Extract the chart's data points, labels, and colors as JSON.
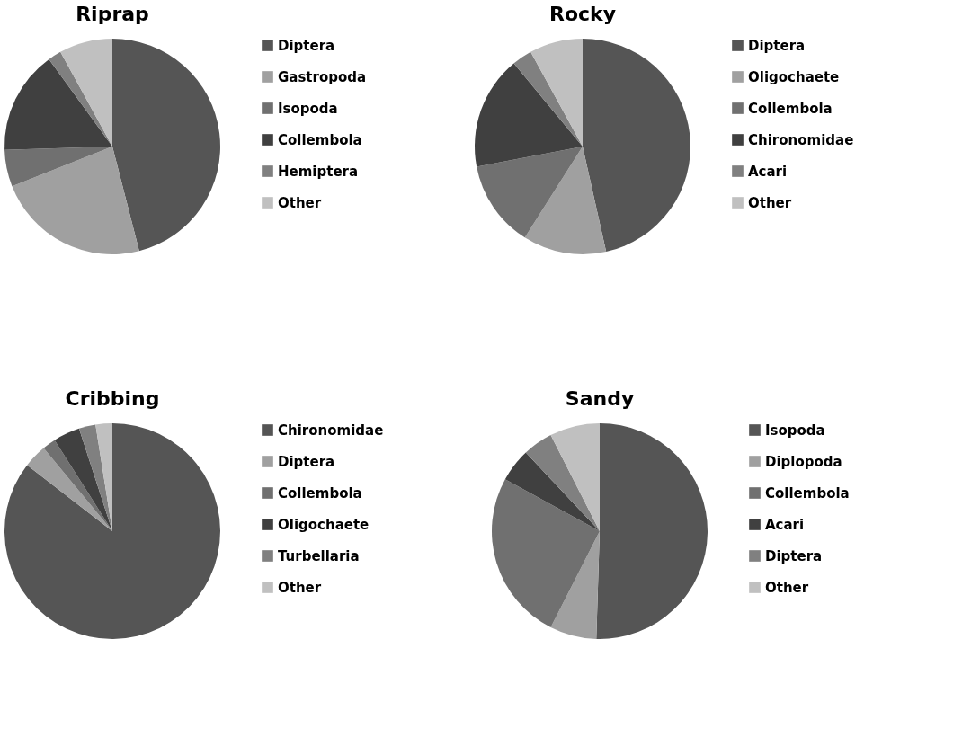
{
  "chart_data": [
    {
      "type": "pie",
      "title": "Riprap",
      "categories": [
        "Diptera",
        "Gastropoda",
        "Isopoda",
        "Collembola",
        "Hemiptera",
        "Other"
      ],
      "values": [
        46,
        23,
        5.5,
        15.5,
        2,
        8
      ],
      "colors": [
        "#555555",
        "#a0a0a0",
        "#707070",
        "#404040",
        "#808080",
        "#c0c0c0"
      ],
      "legend": "right"
    },
    {
      "type": "pie",
      "title": "Rocky",
      "categories": [
        "Diptera",
        "Oligochaete",
        "Collembola",
        "Chironomidae",
        "Acari",
        "Other"
      ],
      "values": [
        46.5,
        12.5,
        13,
        17,
        3,
        8
      ],
      "colors": [
        "#555555",
        "#a0a0a0",
        "#707070",
        "#404040",
        "#808080",
        "#c0c0c0"
      ],
      "legend": "right"
    },
    {
      "type": "pie",
      "title": "Cribbing",
      "categories": [
        "Chironomidae",
        "Diptera",
        "Collembola",
        "Oligochaete",
        "Turbellaria",
        "Other"
      ],
      "values": [
        85.5,
        3.5,
        2,
        4,
        2.5,
        2.5
      ],
      "colors": [
        "#555555",
        "#a0a0a0",
        "#707070",
        "#404040",
        "#808080",
        "#c0c0c0"
      ],
      "legend": "right"
    },
    {
      "type": "pie",
      "title": "Sandy",
      "categories": [
        "Isopoda",
        "Diplopoda",
        "Collembola",
        "Acari",
        "Diptera",
        "Other"
      ],
      "values": [
        50.5,
        7,
        25.5,
        5,
        4.5,
        7.5
      ],
      "colors": [
        "#555555",
        "#a0a0a0",
        "#707070",
        "#404040",
        "#808080",
        "#c0c0c0"
      ],
      "legend": "right"
    }
  ]
}
